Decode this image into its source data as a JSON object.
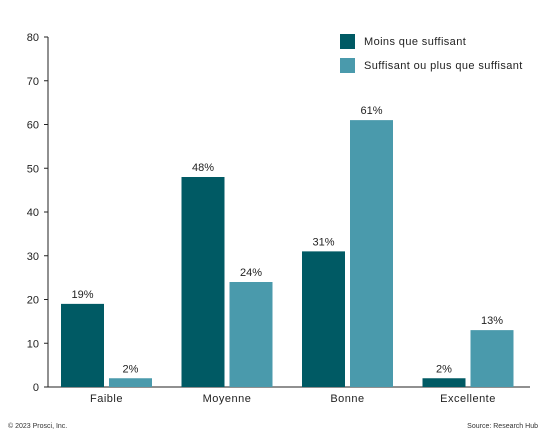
{
  "chart_data": {
    "type": "bar",
    "categories": [
      "Faible",
      "Moyenne",
      "Bonne",
      "Excellente"
    ],
    "series": [
      {
        "name": "Moins que suffisant",
        "values": [
          19,
          48,
          31,
          2
        ],
        "color": "#005a64"
      },
      {
        "name": "Suffisant ou plus que suffisant",
        "values": [
          2,
          24,
          61,
          13
        ],
        "color": "#4a9aac"
      }
    ],
    "value_suffix": "%",
    "ylim": [
      0,
      80
    ],
    "yticks": [
      0,
      10,
      20,
      30,
      40,
      50,
      60,
      70,
      80
    ],
    "grid": false,
    "legend_position": "top-right",
    "title": "",
    "xlabel": "",
    "ylabel": ""
  },
  "footer": {
    "copyright": "© 2023 Prosci, Inc.",
    "source": "Source: Research Hub"
  }
}
